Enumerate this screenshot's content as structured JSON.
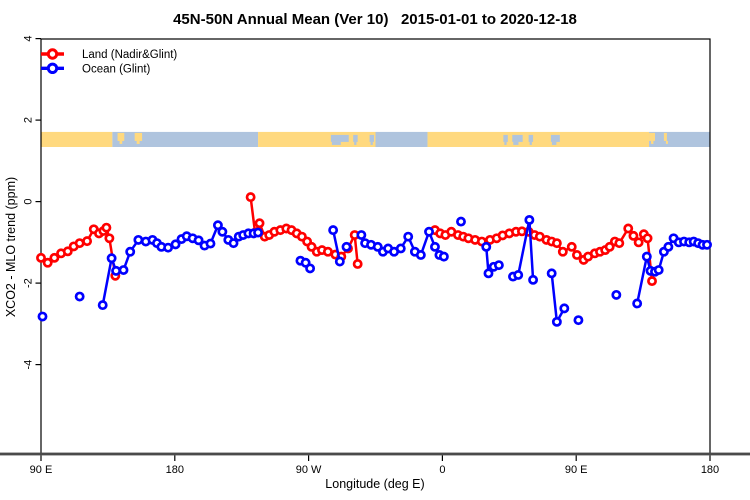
{
  "chart_data": {
    "type": "line",
    "title": "45N-50N Annual Mean (Ver 10)   2015-01-01 to 2020-12-18",
    "xlabel": "Longitude (deg E)",
    "ylabel": "XCO2 - MLO trend (ppm)",
    "x_axis": {
      "ticks": [
        {
          "pos": 90,
          "label": "90 E"
        },
        {
          "pos": 180,
          "label": "180"
        },
        {
          "pos": 270,
          "label": "90 W"
        },
        {
          "pos": 360,
          "label": "0"
        },
        {
          "pos": 450,
          "label": "90 E"
        },
        {
          "pos": 540,
          "label": "180"
        }
      ],
      "range": [
        90,
        540
      ]
    },
    "y_axis": {
      "ticks": [
        {
          "pos": 4,
          "label": "4"
        },
        {
          "pos": 2,
          "label": "2"
        },
        {
          "pos": 0,
          "label": "0"
        },
        {
          "pos": -2,
          "label": "-2"
        },
        {
          "pos": -4,
          "label": "-4"
        }
      ],
      "range": [
        -6.2,
        4.0
      ]
    },
    "colors": {
      "land_series": "#FF0000",
      "ocean_series": "#0000FF",
      "band_land": "#FFD97F",
      "band_ocean": "#AFC4DE",
      "axis_rule": "#4a4a4a",
      "box": "#000000"
    },
    "legend": {
      "position": "top-left",
      "items": [
        {
          "label": "Land (Nadir&Glint)",
          "color_key": "land_series"
        },
        {
          "label": "Ocean (Glint)",
          "color_key": "ocean_series"
        }
      ]
    },
    "band": {
      "description": "world land/ocean strip for latitude 45N-50N",
      "y_top": 1.71,
      "y_bottom": 1.34,
      "segments": [
        {
          "from": 90,
          "to": 138,
          "type": "land"
        },
        {
          "from": 138,
          "to": 236,
          "type": "ocean"
        },
        {
          "from": 236,
          "to": 315,
          "type": "land"
        },
        {
          "from": 315,
          "to": 350,
          "type": "ocean"
        },
        {
          "from": 350,
          "to": 499,
          "type": "land"
        },
        {
          "from": 499,
          "to": 540,
          "type": "ocean"
        }
      ],
      "islands": [
        {
          "from": 141.5,
          "to": 146
        },
        {
          "from": 153,
          "to": 158
        },
        {
          "from": 499,
          "to": 503
        },
        {
          "from": 509,
          "to": 511
        }
      ],
      "lakes": [
        {
          "from": 285,
          "to": 297
        },
        {
          "from": 300,
          "to": 303
        },
        {
          "from": 311,
          "to": 314
        },
        {
          "from": 401,
          "to": 404
        },
        {
          "from": 407,
          "to": 414
        },
        {
          "from": 418,
          "to": 421
        },
        {
          "from": 433,
          "to": 439
        }
      ]
    },
    "series": [
      {
        "name": "Land (Nadir&Glint)",
        "color": "#FF0000",
        "segments": [
          [
            [
              90,
              -1.38
            ],
            [
              94.5,
              -1.5
            ],
            [
              99,
              -1.38
            ],
            [
              103.5,
              -1.27
            ],
            [
              108,
              -1.22
            ],
            [
              112,
              -1.1
            ],
            [
              116,
              -1.02
            ],
            [
              121,
              -0.97
            ],
            [
              125.5,
              -0.68
            ],
            [
              129,
              -0.78
            ],
            [
              132,
              -0.72
            ],
            [
              134,
              -0.64
            ],
            [
              136,
              -0.9
            ],
            [
              140,
              -1.82
            ]
          ],
          [
            [
              231,
              0.11
            ],
            [
              234,
              -0.76
            ],
            [
              237,
              -0.53
            ],
            [
              240.5,
              -0.86
            ],
            [
              243.5,
              -0.82
            ],
            [
              247,
              -0.74
            ],
            [
              251,
              -0.7
            ],
            [
              255,
              -0.66
            ],
            [
              258.5,
              -0.7
            ],
            [
              262,
              -0.78
            ],
            [
              265.5,
              -0.86
            ],
            [
              269,
              -0.98
            ],
            [
              272,
              -1.11
            ],
            [
              275.5,
              -1.23
            ],
            [
              279,
              -1.19
            ],
            [
              283,
              -1.23
            ],
            [
              288,
              -1.3
            ],
            [
              292,
              -1.35
            ],
            [
              296.5,
              -1.15
            ],
            [
              301,
              -0.82
            ],
            [
              303,
              -1.53
            ]
          ],
          [
            [
              355,
              -0.7
            ],
            [
              358.5,
              -0.78
            ],
            [
              362,
              -0.82
            ],
            [
              366,
              -0.74
            ],
            [
              370.5,
              -0.82
            ],
            [
              374,
              -0.86
            ],
            [
              377.5,
              -0.9
            ],
            [
              382,
              -0.94
            ],
            [
              386.5,
              -0.98
            ],
            [
              392,
              -0.94
            ],
            [
              396.5,
              -0.9
            ],
            [
              400.5,
              -0.83
            ],
            [
              405,
              -0.78
            ],
            [
              409.5,
              -0.74
            ],
            [
              413.5,
              -0.73
            ],
            [
              418,
              -0.74
            ],
            [
              422,
              -0.82
            ],
            [
              425.5,
              -0.86
            ],
            [
              430,
              -0.94
            ],
            [
              433.5,
              -0.98
            ],
            [
              437,
              -1.02
            ],
            [
              441,
              -1.23
            ],
            [
              447,
              -1.11
            ],
            [
              450.5,
              -1.31
            ],
            [
              455,
              -1.43
            ],
            [
              458,
              -1.35
            ],
            [
              462.5,
              -1.27
            ],
            [
              466,
              -1.23
            ],
            [
              469.5,
              -1.19
            ],
            [
              472.5,
              -1.11
            ],
            [
              476,
              -0.98
            ],
            [
              479,
              -1.02
            ],
            [
              485,
              -0.66
            ],
            [
              488.5,
              -0.84
            ],
            [
              492,
              -1.0
            ],
            [
              495.5,
              -0.8
            ],
            [
              498,
              -0.9
            ],
            [
              501,
              -1.95
            ]
          ]
        ]
      },
      {
        "name": "Ocean (Glint)",
        "color": "#0000FF",
        "segments": [
          [
            [
              91,
              -2.82
            ]
          ],
          [
            [
              116,
              -2.33
            ]
          ],
          [
            [
              131.5,
              -2.54
            ],
            [
              137.5,
              -1.39
            ],
            [
              140.5,
              -1.7
            ],
            [
              145.5,
              -1.68
            ],
            [
              150,
              -1.23
            ],
            [
              155.5,
              -0.94
            ],
            [
              160.5,
              -0.98
            ],
            [
              165,
              -0.94
            ],
            [
              168,
              -1.02
            ],
            [
              171,
              -1.11
            ],
            [
              175.5,
              -1.13
            ],
            [
              180.5,
              -1.05
            ],
            [
              184.5,
              -0.92
            ],
            [
              188,
              -0.85
            ],
            [
              192,
              -0.9
            ],
            [
              196,
              -0.95
            ],
            [
              200,
              -1.08
            ],
            [
              204,
              -1.03
            ],
            [
              209,
              -0.58
            ],
            [
              212,
              -0.74
            ],
            [
              216,
              -0.94
            ],
            [
              219.5,
              -1.02
            ],
            [
              223,
              -0.86
            ],
            [
              226,
              -0.82
            ],
            [
              229.5,
              -0.78
            ],
            [
              233,
              -0.78
            ],
            [
              236,
              -0.76
            ]
          ],
          [
            [
              264.5,
              -1.45
            ],
            [
              268,
              -1.5
            ],
            [
              271,
              -1.64
            ]
          ],
          [
            [
              286.5,
              -0.7
            ],
            [
              291,
              -1.47
            ]
          ],
          [
            [
              295.5,
              -1.11
            ]
          ],
          [
            [
              305.5,
              -0.82
            ],
            [
              308,
              -1.02
            ],
            [
              312,
              -1.06
            ],
            [
              316.5,
              -1.11
            ],
            [
              320,
              -1.23
            ],
            [
              323.5,
              -1.15
            ],
            [
              327.5,
              -1.23
            ],
            [
              332,
              -1.15
            ],
            [
              337,
              -0.86
            ],
            [
              341.5,
              -1.23
            ],
            [
              345.5,
              -1.31
            ],
            [
              351,
              -0.74
            ],
            [
              355,
              -1.11
            ],
            [
              358,
              -1.31
            ],
            [
              361,
              -1.35
            ]
          ],
          [
            [
              372.5,
              -0.49
            ]
          ],
          [
            [
              389.5,
              -1.11
            ],
            [
              391,
              -1.76
            ],
            [
              394.5,
              -1.6
            ],
            [
              398,
              -1.56
            ]
          ],
          [
            [
              407.5,
              -1.84
            ],
            [
              411,
              -1.8
            ],
            [
              418.5,
              -0.45
            ],
            [
              421,
              -1.92
            ]
          ],
          [
            [
              433.5,
              -1.76
            ],
            [
              437,
              -2.95
            ],
            [
              442,
              -2.62
            ]
          ],
          [
            [
              451.5,
              -2.91
            ]
          ],
          [
            [
              477,
              -2.29
            ]
          ],
          [
            [
              491,
              -2.5
            ],
            [
              497.5,
              -1.35
            ],
            [
              500,
              -1.7
            ],
            [
              503,
              -1.72
            ],
            [
              505.5,
              -1.68
            ],
            [
              509,
              -1.23
            ],
            [
              512,
              -1.11
            ],
            [
              515.5,
              -0.9
            ],
            [
              519,
              -1.0
            ],
            [
              522.5,
              -0.98
            ],
            [
              526,
              -1.0
            ],
            [
              529,
              -0.98
            ],
            [
              532,
              -1.02
            ],
            [
              535,
              -1.06
            ],
            [
              538,
              -1.06
            ]
          ]
        ]
      }
    ]
  }
}
